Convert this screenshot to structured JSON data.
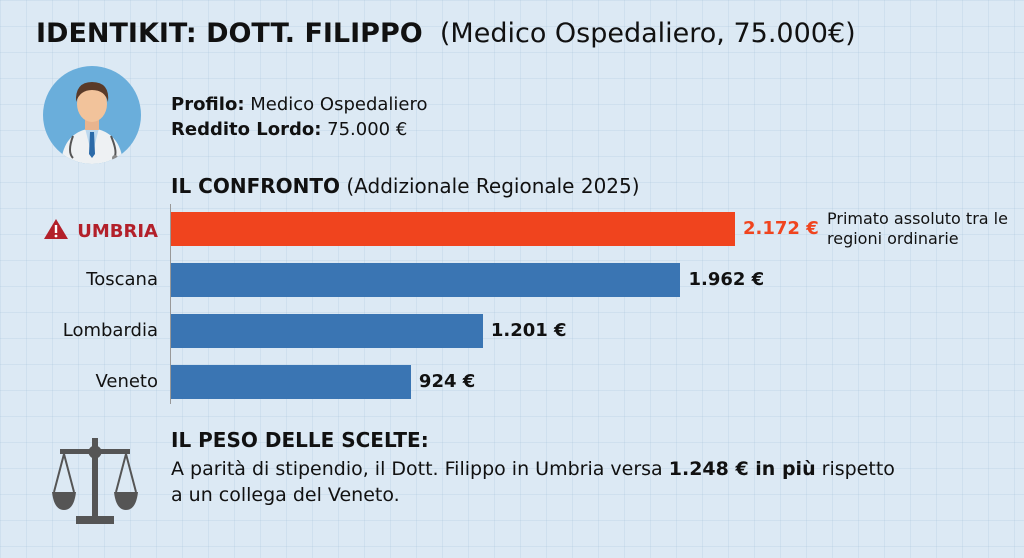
{
  "title": {
    "bold": "IDENTIKIT: DOTT. FILIPPO",
    "normal": "(Medico Ospedaliero, 75.000€)"
  },
  "profile": {
    "label1": "Profilo:",
    "value1": "Medico Ospedaliero",
    "label2": "Reddito Lordo:",
    "value2": "75.000 €"
  },
  "confronto": {
    "bold": "IL CONFRONTO",
    "normal": "(Addizionale Regionale 2025)"
  },
  "chart_data": {
    "type": "bar",
    "orientation": "horizontal",
    "categories": [
      "UMBRIA",
      "Toscana",
      "Lombardia",
      "Veneto"
    ],
    "values": [
      2172,
      1962,
      1201,
      924
    ],
    "labels": [
      "2.172 €",
      "1.962 €",
      "1.201 €",
      "924 €"
    ],
    "colors": [
      "#f0441e",
      "#3a75b3",
      "#3a75b3",
      "#3a75b3"
    ],
    "annotation": "Primato assoluto tra le regioni ordinarie",
    "highlight_icon": "warning-icon",
    "xlim": [
      0,
      2172
    ],
    "grid": false
  },
  "peso": {
    "title": "IL PESO DELLE SCELTE:",
    "text1": "A parità di stipendio, il Dott. Filippo in Umbria versa ",
    "bold": "1.248 € in più",
    "text2": " rispetto",
    "text3": "a un collega del Veneto."
  },
  "colors": {
    "highlight": "#f0441e",
    "bar": "#3a75b3",
    "highlight_label": "#b3202a"
  }
}
